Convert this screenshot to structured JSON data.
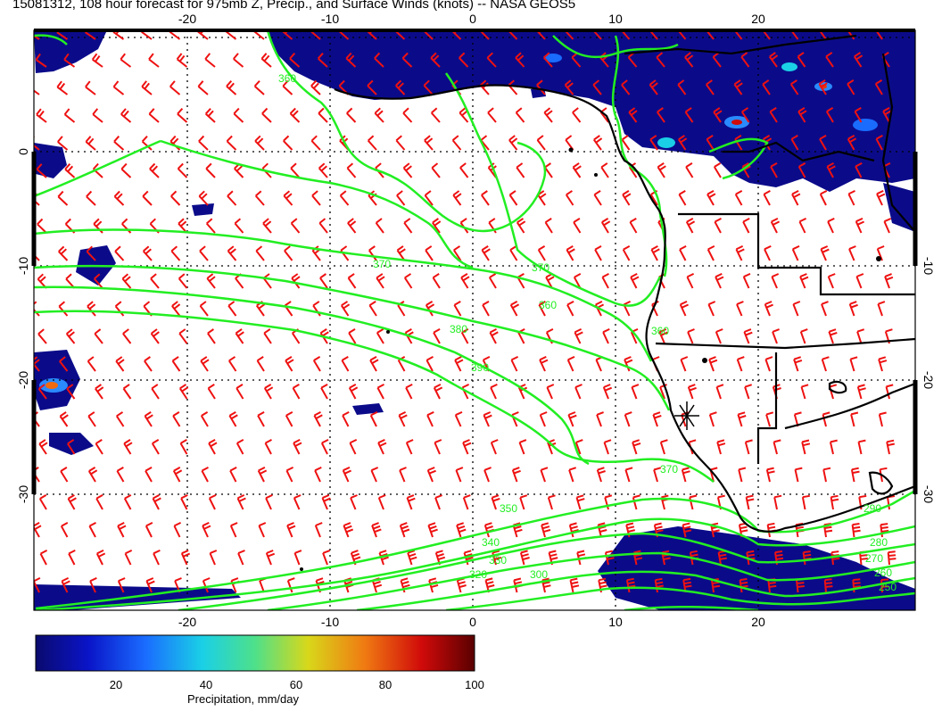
{
  "title": "15081312, 108 hour forecast for 975mb Z, Precip., and Surface Winds (knots) -- NASA GEOS5",
  "map": {
    "lon_ticks_top": [
      "-20",
      "-10",
      "0",
      "10",
      "20"
    ],
    "lon_ticks_bottom": [
      "-20",
      "-10",
      "0",
      "10",
      "20"
    ],
    "lat_ticks_left": [
      "0",
      "-10",
      "-20",
      "-30"
    ],
    "lat_ticks_right": [
      "-10",
      "-20",
      "-30"
    ],
    "contour_labels": [
      "360",
      "370",
      "370",
      "360",
      "380",
      "390",
      "370",
      "360",
      "350",
      "340",
      "330",
      "320",
      "300",
      "290",
      "280",
      "270",
      "260",
      "250"
    ],
    "colors": {
      "contour": "#22ee22",
      "wind_barb": "#ee1111",
      "coastline": "#000000",
      "grid": "#000000"
    },
    "marker": "x-star"
  },
  "colorbar": {
    "ticks": [
      "20",
      "40",
      "60",
      "80",
      "100"
    ],
    "label": "Precipitation, mm/day",
    "range": [
      0,
      100
    ]
  }
}
